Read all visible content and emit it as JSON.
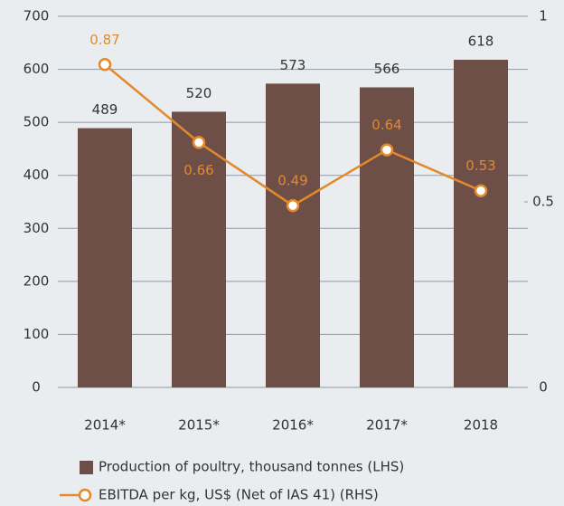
{
  "chart_data": {
    "type": "bar",
    "categories": [
      "2014*",
      "2015*",
      "2016*",
      "2017*",
      "2018"
    ],
    "series": [
      {
        "name": "Production of poultry, thousand tonnes (LHS)",
        "type": "bar",
        "color": "#6d4f48",
        "values": [
          489,
          520,
          573,
          566,
          618
        ]
      },
      {
        "name": "EBITDA per kg, US$ (Net of IAS 41) (RHS)",
        "type": "line",
        "axis": "y2",
        "color": "#e3892b",
        "values": [
          0.87,
          0.66,
          0.49,
          0.64,
          0.53
        ]
      }
    ],
    "ylim": [
      0,
      700
    ],
    "yticks": [
      0,
      100,
      200,
      300,
      400,
      500,
      600,
      700
    ],
    "y2lim": [
      0,
      1
    ],
    "y2ticks": [
      0,
      0.5,
      1
    ],
    "grid": true,
    "legend": "bottom"
  }
}
